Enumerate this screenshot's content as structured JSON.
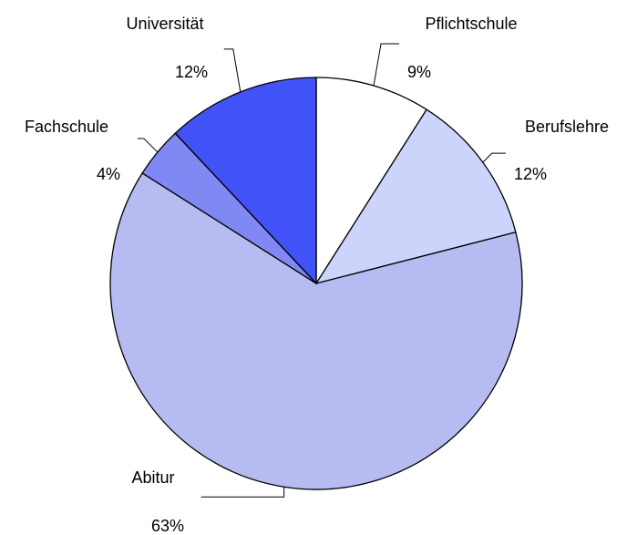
{
  "chart_data": {
    "type": "pie",
    "categories": [
      "Pflichtschule",
      "Berufslehre",
      "Abitur",
      "Fachschule",
      "Universität"
    ],
    "values": [
      9,
      12,
      63,
      4,
      12
    ],
    "value_labels": [
      "9%",
      "12%",
      "63%",
      "4%",
      "12%"
    ],
    "colors": [
      "#ffffff",
      "#cdd4fc",
      "#b6bbf2",
      "#8088f4",
      "#4152f7"
    ]
  }
}
